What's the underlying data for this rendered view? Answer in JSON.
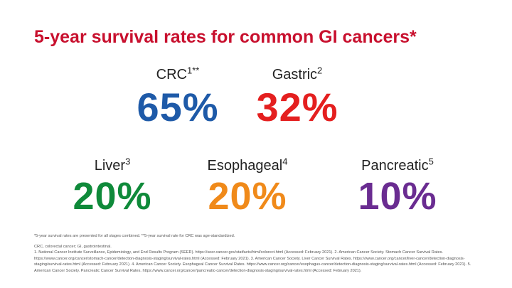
{
  "title": "5-year survival rates for common GI cancers*",
  "colors": {
    "title": "#C8102E",
    "crc": "#1E5AA8",
    "gastric": "#E41F1F",
    "liver": "#0F8A3A",
    "esophageal": "#F08A1A",
    "pancreatic": "#6A2C91"
  },
  "stats": [
    {
      "label": "CRC",
      "ref": "1**",
      "value": "65%"
    },
    {
      "label": "Gastric",
      "ref": "2",
      "value": "32%"
    },
    {
      "label": "Liver",
      "ref": "3",
      "value": "20%"
    },
    {
      "label": "Esophageal",
      "ref": "4",
      "value": "20%"
    },
    {
      "label": "Pancreatic",
      "ref": "5",
      "value": "10%"
    }
  ],
  "footnotes": {
    "note": "*5-year survival rates are presented for all stages combined. **5-year survival rate for CRC was age-standardized.",
    "abbrev": "CRC, colorectal cancer; GI, gastrointestinal.",
    "refs": "1. National Cancer Institute Surveillance, Epidemiology, and End Results Program (SEER). https://seer.cancer.gov/statfacts/html/colorect.html (Accessed: February 2021). 2. American Cancer Society. Stomach Cancer Survival Rates. https://www.cancer.org/cancer/stomach-cancer/detection-diagnosis-staging/survival-rates.html (Accessed: February 2021). 3. American Cancer Society. Liver Cancer Survival Rates. https://www.cancer.org/cancer/liver-cancer/detection-diagnosis-staging/survival-rates.html (Accessed: February 2021). 4. American Cancer Society. Esophageal Cancer Survival Rates. https://www.cancer.org/cancer/esophagus-cancer/detection-diagnosis-staging/survival-rates.html (Accessed: February 2021). 5. American Cancer Society. Pancreatic Cancer Survival Rates. https://www.cancer.org/cancer/pancreatic-cancer/detection-diagnosis-staging/survival-rates.html (Accessed: February 2021)."
  }
}
